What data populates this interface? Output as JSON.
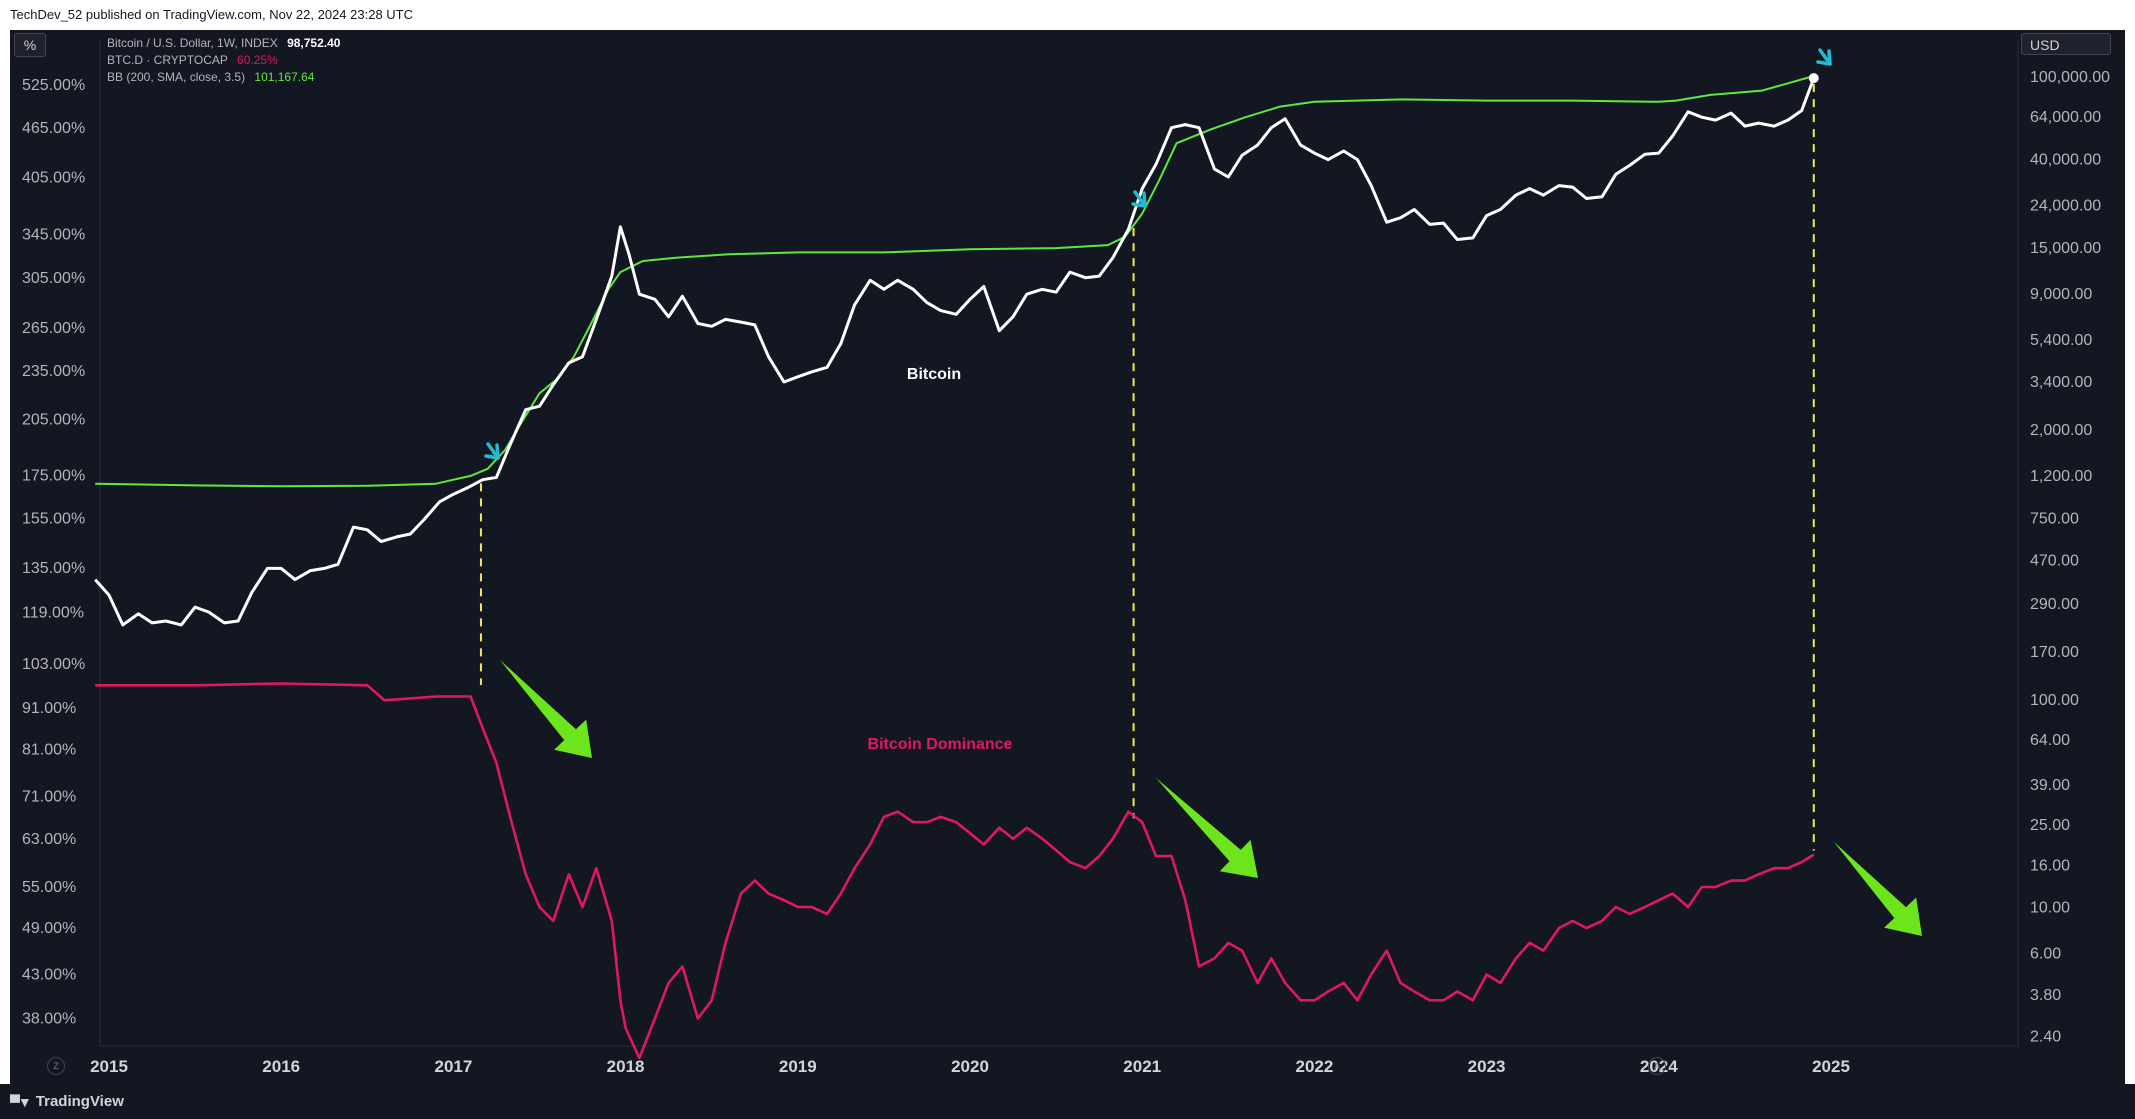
{
  "header": {
    "published": "TechDev_52 published on TradingView.com, Nov 22, 2024 23:28 UTC"
  },
  "legend": {
    "line1_label": "Bitcoin / U.S. Dollar, 1W, INDEX",
    "line1_value": "98,752.40",
    "line2_label": "BTC.D · CRYPTOCAP",
    "line2_value": "60.25%",
    "line3_label": "BB (200, SMA, close, 3.5)",
    "line3_value": "101,167.64"
  },
  "axes": {
    "left_unit": "%",
    "right_unit": "USD",
    "corner_left": "Z",
    "corner_right": "A"
  },
  "branding": {
    "logo_text": "TradingView",
    "logo_icon": "tradingview-logo-icon"
  },
  "colors": {
    "btc": "#ffffff",
    "dominance": "#e0195f",
    "band": "#5ee83c",
    "arrow_green": "#6de51c",
    "arrow_cyan": "#1fbcd2",
    "dash": "#f2e94e"
  },
  "chart_data": {
    "type": "line",
    "left_axis": {
      "scale": "log",
      "ticks": [
        "525.00%",
        "465.00%",
        "405.00%",
        "345.00%",
        "305.00%",
        "265.00%",
        "235.00%",
        "205.00%",
        "175.00%",
        "155.00%",
        "135.00%",
        "119.00%",
        "103.00%",
        "91.00%",
        "81.00%",
        "71.00%",
        "63.00%",
        "55.00%",
        "49.00%",
        "43.00%",
        "38.00%"
      ]
    },
    "right_axis": {
      "scale": "log",
      "ticks": [
        "100,000.00",
        "64,000.00",
        "40,000.00",
        "24,000.00",
        "15,000.00",
        "9,000.00",
        "5,400.00",
        "3,400.00",
        "2,000.00",
        "1,200.00",
        "750.00",
        "470.00",
        "290.00",
        "170.00",
        "100.00",
        "64.00",
        "39.00",
        "25.00",
        "16.00",
        "10.00",
        "6.00",
        "3.80",
        "2.40"
      ]
    },
    "x_axis": {
      "ticks": [
        "2015",
        "2016",
        "2017",
        "2018",
        "2019",
        "2020",
        "2021",
        "2022",
        "2023",
        "2024",
        "2025"
      ]
    },
    "annotations": [
      "Bitcoin",
      "Bitcoin Dominance"
    ],
    "series": [
      {
        "name": "Bitcoin / U.S. Dollar, 1W, INDEX",
        "axis": "right",
        "points": [
          [
            2014.92,
            380
          ],
          [
            2015.0,
            320
          ],
          [
            2015.08,
            230
          ],
          [
            2015.17,
            260
          ],
          [
            2015.25,
            235
          ],
          [
            2015.33,
            240
          ],
          [
            2015.42,
            230
          ],
          [
            2015.5,
            280
          ],
          [
            2015.58,
            265
          ],
          [
            2015.67,
            235
          ],
          [
            2015.75,
            240
          ],
          [
            2015.83,
            330
          ],
          [
            2015.92,
            430
          ],
          [
            2016.0,
            430
          ],
          [
            2016.08,
            380
          ],
          [
            2016.17,
            420
          ],
          [
            2016.25,
            430
          ],
          [
            2016.33,
            450
          ],
          [
            2016.42,
            680
          ],
          [
            2016.5,
            660
          ],
          [
            2016.58,
            580
          ],
          [
            2016.67,
            610
          ],
          [
            2016.75,
            630
          ],
          [
            2016.83,
            740
          ],
          [
            2016.92,
            900
          ],
          [
            2017.0,
            980
          ],
          [
            2017.08,
            1050
          ],
          [
            2017.17,
            1150
          ],
          [
            2017.25,
            1180
          ],
          [
            2017.33,
            1700
          ],
          [
            2017.42,
            2500
          ],
          [
            2017.5,
            2600
          ],
          [
            2017.58,
            3300
          ],
          [
            2017.67,
            4200
          ],
          [
            2017.75,
            4500
          ],
          [
            2017.83,
            6800
          ],
          [
            2017.92,
            11000
          ],
          [
            2017.97,
            19000
          ],
          [
            2018.02,
            14000
          ],
          [
            2018.08,
            9000
          ],
          [
            2018.17,
            8500
          ],
          [
            2018.25,
            7000
          ],
          [
            2018.33,
            8800
          ],
          [
            2018.42,
            6500
          ],
          [
            2018.5,
            6300
          ],
          [
            2018.58,
            6800
          ],
          [
            2018.67,
            6600
          ],
          [
            2018.75,
            6400
          ],
          [
            2018.83,
            4500
          ],
          [
            2018.92,
            3400
          ],
          [
            2019.0,
            3600
          ],
          [
            2019.08,
            3800
          ],
          [
            2019.17,
            4000
          ],
          [
            2019.25,
            5200
          ],
          [
            2019.33,
            8000
          ],
          [
            2019.42,
            10500
          ],
          [
            2019.5,
            9500
          ],
          [
            2019.58,
            10500
          ],
          [
            2019.67,
            9500
          ],
          [
            2019.75,
            8200
          ],
          [
            2019.83,
            7500
          ],
          [
            2019.92,
            7200
          ],
          [
            2020.0,
            8500
          ],
          [
            2020.08,
            9800
          ],
          [
            2020.17,
            6000
          ],
          [
            2020.25,
            7000
          ],
          [
            2020.33,
            9000
          ],
          [
            2020.42,
            9500
          ],
          [
            2020.5,
            9200
          ],
          [
            2020.58,
            11500
          ],
          [
            2020.67,
            10800
          ],
          [
            2020.75,
            11000
          ],
          [
            2020.83,
            13500
          ],
          [
            2020.92,
            18500
          ],
          [
            2021.0,
            29000
          ],
          [
            2021.08,
            38000
          ],
          [
            2021.17,
            57000
          ],
          [
            2021.25,
            59000
          ],
          [
            2021.33,
            57000
          ],
          [
            2021.42,
            36000
          ],
          [
            2021.5,
            33000
          ],
          [
            2021.58,
            42000
          ],
          [
            2021.67,
            47000
          ],
          [
            2021.75,
            57000
          ],
          [
            2021.83,
            63000
          ],
          [
            2021.92,
            47000
          ],
          [
            2022.0,
            43000
          ],
          [
            2022.08,
            40000
          ],
          [
            2022.17,
            44000
          ],
          [
            2022.25,
            40000
          ],
          [
            2022.33,
            30000
          ],
          [
            2022.42,
            20000
          ],
          [
            2022.5,
            21000
          ],
          [
            2022.58,
            23000
          ],
          [
            2022.67,
            19500
          ],
          [
            2022.75,
            19800
          ],
          [
            2022.83,
            16500
          ],
          [
            2022.92,
            16800
          ],
          [
            2023.0,
            21500
          ],
          [
            2023.08,
            23000
          ],
          [
            2023.17,
            27000
          ],
          [
            2023.25,
            29000
          ],
          [
            2023.33,
            27000
          ],
          [
            2023.42,
            30000
          ],
          [
            2023.5,
            29500
          ],
          [
            2023.58,
            26000
          ],
          [
            2023.67,
            26500
          ],
          [
            2023.75,
            34000
          ],
          [
            2023.83,
            37500
          ],
          [
            2023.92,
            42500
          ],
          [
            2024.0,
            43000
          ],
          [
            2024.08,
            52000
          ],
          [
            2024.17,
            68000
          ],
          [
            2024.25,
            64000
          ],
          [
            2024.33,
            62000
          ],
          [
            2024.42,
            67000
          ],
          [
            2024.5,
            58000
          ],
          [
            2024.58,
            60000
          ],
          [
            2024.67,
            58000
          ],
          [
            2024.75,
            62000
          ],
          [
            2024.83,
            69000
          ],
          [
            2024.9,
            98752
          ]
        ]
      },
      {
        "name": "BTC.D · CRYPTOCAP",
        "axis": "left",
        "points": [
          [
            2014.92,
            97
          ],
          [
            2015.5,
            97
          ],
          [
            2016.0,
            97.5
          ],
          [
            2016.5,
            97
          ],
          [
            2016.6,
            93
          ],
          [
            2016.9,
            94
          ],
          [
            2017.1,
            94
          ],
          [
            2017.17,
            86
          ],
          [
            2017.25,
            78
          ],
          [
            2017.33,
            67
          ],
          [
            2017.42,
            57
          ],
          [
            2017.5,
            52
          ],
          [
            2017.58,
            50
          ],
          [
            2017.67,
            57
          ],
          [
            2017.75,
            52
          ],
          [
            2017.83,
            58
          ],
          [
            2017.92,
            50
          ],
          [
            2017.97,
            40
          ],
          [
            2018.0,
            37
          ],
          [
            2018.08,
            34
          ],
          [
            2018.17,
            38
          ],
          [
            2018.25,
            42
          ],
          [
            2018.33,
            44
          ],
          [
            2018.42,
            38
          ],
          [
            2018.5,
            40
          ],
          [
            2018.58,
            47
          ],
          [
            2018.67,
            54
          ],
          [
            2018.75,
            56
          ],
          [
            2018.83,
            54
          ],
          [
            2018.92,
            53
          ],
          [
            2019.0,
            52
          ],
          [
            2019.08,
            52
          ],
          [
            2019.17,
            51
          ],
          [
            2019.25,
            54
          ],
          [
            2019.33,
            58
          ],
          [
            2019.42,
            62
          ],
          [
            2019.5,
            67
          ],
          [
            2019.58,
            68
          ],
          [
            2019.67,
            66
          ],
          [
            2019.75,
            66
          ],
          [
            2019.83,
            67
          ],
          [
            2019.92,
            66
          ],
          [
            2020.0,
            64
          ],
          [
            2020.08,
            62
          ],
          [
            2020.17,
            65
          ],
          [
            2020.25,
            63
          ],
          [
            2020.33,
            65
          ],
          [
            2020.42,
            63
          ],
          [
            2020.5,
            61
          ],
          [
            2020.58,
            59
          ],
          [
            2020.67,
            58
          ],
          [
            2020.75,
            60
          ],
          [
            2020.83,
            63
          ],
          [
            2020.92,
            68
          ],
          [
            2021.0,
            66
          ],
          [
            2021.08,
            60
          ],
          [
            2021.17,
            60
          ],
          [
            2021.25,
            53
          ],
          [
            2021.33,
            44
          ],
          [
            2021.42,
            45
          ],
          [
            2021.5,
            47
          ],
          [
            2021.58,
            46
          ],
          [
            2021.67,
            42
          ],
          [
            2021.75,
            45
          ],
          [
            2021.83,
            42
          ],
          [
            2021.92,
            40
          ],
          [
            2022.0,
            40
          ],
          [
            2022.08,
            41
          ],
          [
            2022.17,
            42
          ],
          [
            2022.25,
            40
          ],
          [
            2022.33,
            43
          ],
          [
            2022.42,
            46
          ],
          [
            2022.5,
            42
          ],
          [
            2022.58,
            41
          ],
          [
            2022.67,
            40
          ],
          [
            2022.75,
            40
          ],
          [
            2022.83,
            41
          ],
          [
            2022.92,
            40
          ],
          [
            2023.0,
            43
          ],
          [
            2023.08,
            42
          ],
          [
            2023.17,
            45
          ],
          [
            2023.25,
            47
          ],
          [
            2023.33,
            46
          ],
          [
            2023.42,
            49
          ],
          [
            2023.5,
            50
          ],
          [
            2023.58,
            49
          ],
          [
            2023.67,
            50
          ],
          [
            2023.75,
            52
          ],
          [
            2023.83,
            51
          ],
          [
            2023.92,
            52
          ],
          [
            2024.0,
            53
          ],
          [
            2024.08,
            54
          ],
          [
            2024.17,
            52
          ],
          [
            2024.25,
            55
          ],
          [
            2024.33,
            55
          ],
          [
            2024.42,
            56
          ],
          [
            2024.5,
            56
          ],
          [
            2024.58,
            57
          ],
          [
            2024.67,
            58
          ],
          [
            2024.75,
            58
          ],
          [
            2024.83,
            59
          ],
          [
            2024.9,
            60.25
          ]
        ]
      },
      {
        "name": "BB (200, SMA, close, 3.5)",
        "axis": "right",
        "points": [
          [
            2014.92,
            1100
          ],
          [
            2015.5,
            1080
          ],
          [
            2016.0,
            1070
          ],
          [
            2016.5,
            1075
          ],
          [
            2016.9,
            1100
          ],
          [
            2017.0,
            1150
          ],
          [
            2017.1,
            1200
          ],
          [
            2017.2,
            1300
          ],
          [
            2017.3,
            1600
          ],
          [
            2017.4,
            2200
          ],
          [
            2017.5,
            3000
          ],
          [
            2017.6,
            3500
          ],
          [
            2017.7,
            4500
          ],
          [
            2017.8,
            6500
          ],
          [
            2017.9,
            9500
          ],
          [
            2017.97,
            11500
          ],
          [
            2018.1,
            13000
          ],
          [
            2018.3,
            13500
          ],
          [
            2018.6,
            14000
          ],
          [
            2019.0,
            14300
          ],
          [
            2019.5,
            14300
          ],
          [
            2020.0,
            14800
          ],
          [
            2020.5,
            15000
          ],
          [
            2020.8,
            15500
          ],
          [
            2020.9,
            17000
          ],
          [
            2021.0,
            22000
          ],
          [
            2021.1,
            32000
          ],
          [
            2021.2,
            48000
          ],
          [
            2021.4,
            56000
          ],
          [
            2021.6,
            64000
          ],
          [
            2021.8,
            72000
          ],
          [
            2022.0,
            76000
          ],
          [
            2022.5,
            78000
          ],
          [
            2023.0,
            77000
          ],
          [
            2023.5,
            77000
          ],
          [
            2024.0,
            76000
          ],
          [
            2024.1,
            77000
          ],
          [
            2024.3,
            82000
          ],
          [
            2024.6,
            86000
          ],
          [
            2024.9,
            101168
          ]
        ]
      }
    ]
  }
}
